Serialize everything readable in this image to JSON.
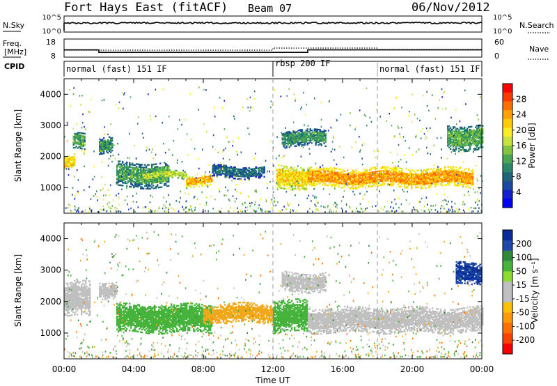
{
  "header": {
    "site": "Fort Hays East (fitACF)",
    "beam": "Beam 07",
    "date": "06/Nov/2012"
  },
  "top_panel": {
    "left_label": "N.Sky",
    "left_ticks": [
      "10^5",
      "10^0"
    ],
    "right_label": "N.Search",
    "right_ticks": [
      "10^5",
      "10^0"
    ]
  },
  "freq_panel": {
    "left_label_1": "Freq.",
    "left_label_2": "[MHz]",
    "left_ticks": [
      "18",
      "8"
    ],
    "right_label": "Nave",
    "right_ticks": [
      "60",
      "0"
    ],
    "freq_steps": [
      {
        "from": 0.0,
        "to": 2.0,
        "value": 12.0
      },
      {
        "from": 2.0,
        "to": 14.0,
        "value": 10.6
      },
      {
        "from": 14.0,
        "to": 24.0,
        "value": 12.0
      }
    ]
  },
  "cpid": {
    "label": "CPID",
    "segments": [
      {
        "start": 0,
        "end": 12,
        "label": "normal (fast) 151 IF"
      },
      {
        "start": 12,
        "end": 18,
        "label": "rbsp 200 IF"
      },
      {
        "start": 18,
        "end": 24,
        "label": "normal (fast) 151 IF"
      }
    ]
  },
  "colorbars": {
    "power": {
      "label": "Power [dB]",
      "ticks": [
        "28",
        "24",
        "20",
        "16",
        "12",
        "8",
        "4"
      ],
      "colors": [
        "#ff0000",
        "#ff3a00",
        "#ff7000",
        "#ffa200",
        "#ffce00",
        "#f8ee20",
        "#c6e23c",
        "#84c43e",
        "#4aa650",
        "#2a8a6a",
        "#20647a",
        "#1a4a9e",
        "#1020d2",
        "#0000ff"
      ]
    },
    "velocity": {
      "label": "Velocity [m s⁻¹]",
      "ticks": [
        "200",
        "100",
        "50",
        "15",
        "-15",
        "-50",
        "-100",
        "-200"
      ],
      "colors": [
        "#0a2c9a",
        "#1e4aa6",
        "#2f8a3a",
        "#46b43c",
        "#8cdc32",
        "#c0c0c0",
        "#c0c0c0",
        "#ffc000",
        "#ff9a00",
        "#ff7000",
        "#ff4000",
        "#ff0000"
      ]
    }
  },
  "chart_data": [
    {
      "type": "heatmap",
      "title": "",
      "xlabel": "Time UT",
      "ylabel": "Slant Range [km]",
      "xlim": [
        0,
        24
      ],
      "ylim": [
        180,
        4500
      ],
      "x_ticks": [
        "00:00",
        "04:00",
        "08:00",
        "12:00",
        "16:00",
        "20:00",
        "00:00"
      ],
      "y_ticks": [
        "1000",
        "2000",
        "3000",
        "4000"
      ],
      "colorbar": "Power [dB]",
      "regions": [
        {
          "t0": 0.0,
          "t1": 0.6,
          "r0": 1550,
          "r1": 2000,
          "value": 22
        },
        {
          "t0": 0.5,
          "t1": 1.2,
          "r0": 2200,
          "r1": 2700,
          "value": 14
        },
        {
          "t0": 2.0,
          "t1": 2.8,
          "r0": 2100,
          "r1": 2600,
          "value": 12
        },
        {
          "t0": 3.0,
          "t1": 6.0,
          "r0": 1000,
          "r1": 1800,
          "value": 13
        },
        {
          "t0": 4.5,
          "t1": 7.0,
          "r0": 1250,
          "r1": 1500,
          "value": 18
        },
        {
          "t0": 7.0,
          "t1": 8.5,
          "r0": 1050,
          "r1": 1400,
          "value": 24
        },
        {
          "t0": 8.5,
          "t1": 11.5,
          "r0": 1300,
          "r1": 1700,
          "value": 9
        },
        {
          "t0": 12.2,
          "t1": 14.0,
          "r0": 950,
          "r1": 1700,
          "value": 22
        },
        {
          "t0": 14.0,
          "t1": 23.5,
          "r0": 1000,
          "r1": 1600,
          "value": 25
        },
        {
          "t0": 12.5,
          "t1": 15.0,
          "r0": 2300,
          "r1": 2800,
          "value": 12
        },
        {
          "t0": 22.0,
          "t1": 24.0,
          "r0": 2200,
          "r1": 3000,
          "value": 14
        }
      ]
    },
    {
      "type": "heatmap",
      "title": "",
      "xlabel": "Time UT",
      "ylabel": "Slant Range [km]",
      "xlim": [
        0,
        24
      ],
      "ylim": [
        180,
        4500
      ],
      "x_ticks": [
        "00:00",
        "04:00",
        "08:00",
        "12:00",
        "16:00",
        "20:00",
        "00:00"
      ],
      "y_ticks": [
        "1000",
        "2000",
        "3000",
        "4000"
      ],
      "colorbar": "Velocity [m s⁻¹]",
      "regions": [
        {
          "t0": 0.0,
          "t1": 1.5,
          "r0": 1500,
          "r1": 2600,
          "value": 0
        },
        {
          "t0": 2.0,
          "t1": 3.0,
          "r0": 2100,
          "r1": 2600,
          "value": 0
        },
        {
          "t0": 3.0,
          "t1": 8.5,
          "r0": 1000,
          "r1": 1900,
          "value": 40
        },
        {
          "t0": 8.0,
          "t1": 12.0,
          "r0": 1300,
          "r1": 1900,
          "value": -40
        },
        {
          "t0": 12.0,
          "t1": 14.0,
          "r0": 1000,
          "r1": 2000,
          "value": 30
        },
        {
          "t0": 14.0,
          "t1": 24.0,
          "r0": 1000,
          "r1": 1800,
          "value": 0
        },
        {
          "t0": 12.5,
          "t1": 15.0,
          "r0": 2300,
          "r1": 2900,
          "value": 0
        },
        {
          "t0": 22.5,
          "t1": 24.0,
          "r0": 2500,
          "r1": 3200,
          "value": 150
        }
      ]
    }
  ]
}
